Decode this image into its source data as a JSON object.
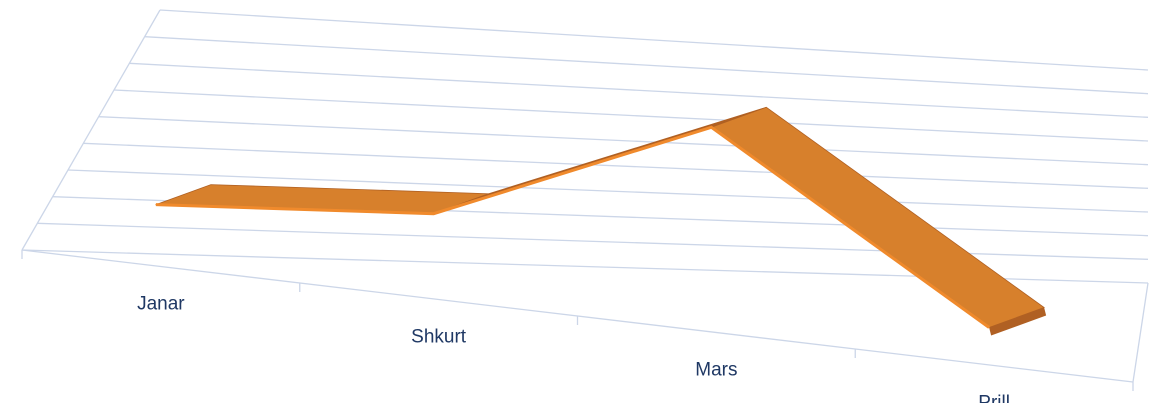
{
  "chart_data": {
    "type": "line",
    "style": "3d-ribbon",
    "categories": [
      "Janar",
      "Shkurt",
      "Mars",
      "Prill"
    ],
    "series": [
      {
        "values": [
          1,
          2,
          7,
          0
        ]
      }
    ],
    "ylim": [
      0,
      9
    ],
    "grid": true,
    "legend": "none",
    "colors": {
      "ribbon_top": "#d7802c",
      "ribbon_front": "#f08a2c",
      "ribbon_dark": "#b06023",
      "gridline": "#ccd6e8",
      "tick_text": "#1f3864"
    }
  }
}
